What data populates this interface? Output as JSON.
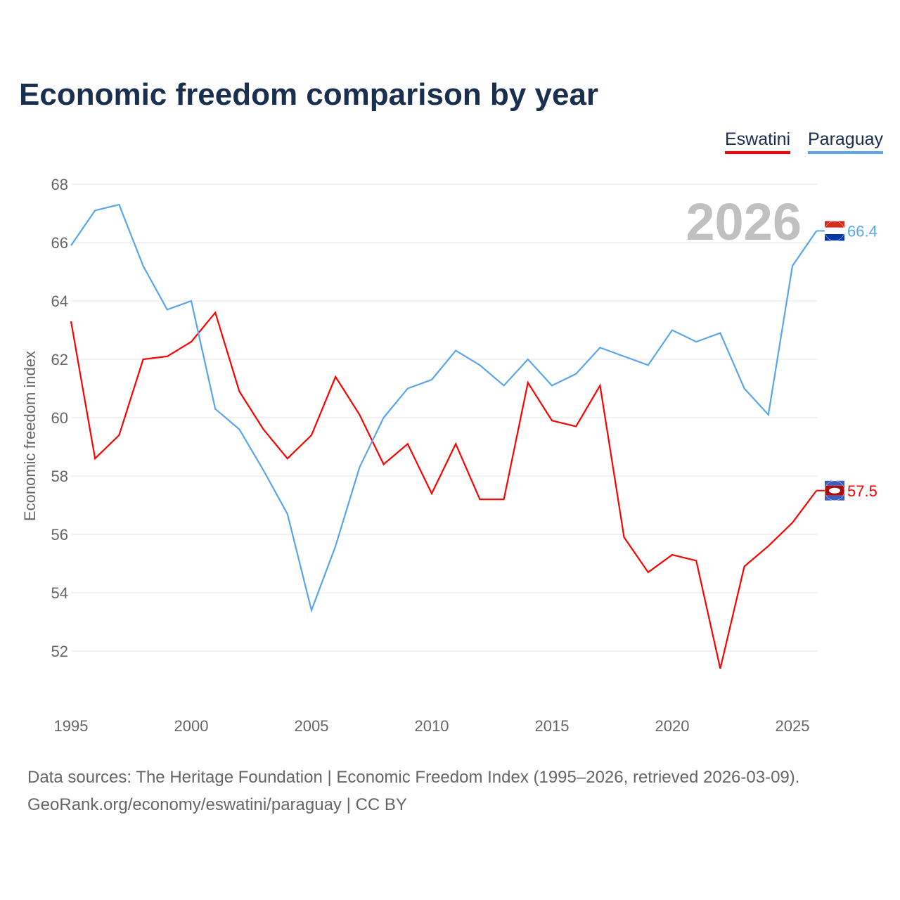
{
  "chart_data": {
    "type": "line",
    "title": "Economic freedom comparison by year",
    "xlabel": "",
    "ylabel": "Economic freedom index",
    "ylim": [
      50,
      68.5
    ],
    "yticks": [
      52,
      54,
      56,
      58,
      60,
      62,
      64,
      66,
      68
    ],
    "xticks": [
      1995,
      2000,
      2005,
      2010,
      2015,
      2020,
      2025
    ],
    "grid": true,
    "legend_position": "top-right",
    "year_label": "2026",
    "x": [
      1995,
      1996,
      1997,
      1998,
      1999,
      2000,
      2001,
      2002,
      2003,
      2004,
      2005,
      2006,
      2007,
      2008,
      2009,
      2010,
      2011,
      2012,
      2013,
      2014,
      2015,
      2016,
      2017,
      2018,
      2019,
      2020,
      2021,
      2022,
      2023,
      2024,
      2025,
      2026
    ],
    "series": [
      {
        "name": "Eswatini",
        "color": "#ff0000",
        "end_label": "57.5",
        "values": [
          63.3,
          58.6,
          59.4,
          62.0,
          62.1,
          62.6,
          63.6,
          60.9,
          59.6,
          58.6,
          59.4,
          61.4,
          60.1,
          58.4,
          59.1,
          57.4,
          59.1,
          57.2,
          57.2,
          61.2,
          59.9,
          59.7,
          61.1,
          55.9,
          54.7,
          55.3,
          55.1,
          51.4,
          54.9,
          55.6,
          56.4,
          57.5
        ]
      },
      {
        "name": "Paraguay",
        "color": "#5aa5ec",
        "end_label": "66.4",
        "values": [
          65.9,
          67.1,
          67.3,
          65.2,
          63.7,
          64.0,
          60.3,
          59.6,
          58.2,
          56.7,
          53.4,
          55.6,
          58.3,
          60.0,
          61.0,
          61.3,
          62.3,
          61.8,
          61.1,
          62.0,
          61.1,
          61.5,
          62.4,
          62.1,
          61.8,
          63.0,
          62.6,
          62.9,
          61.0,
          60.1,
          65.2,
          66.4
        ]
      }
    ]
  },
  "footer": {
    "line1": "Data sources: The Heritage Foundation | Economic Freedom Index (1995–2026, retrieved 2026-03-09).",
    "line2": "GeoRank.org/economy/eswatini/paraguay | CC BY"
  }
}
